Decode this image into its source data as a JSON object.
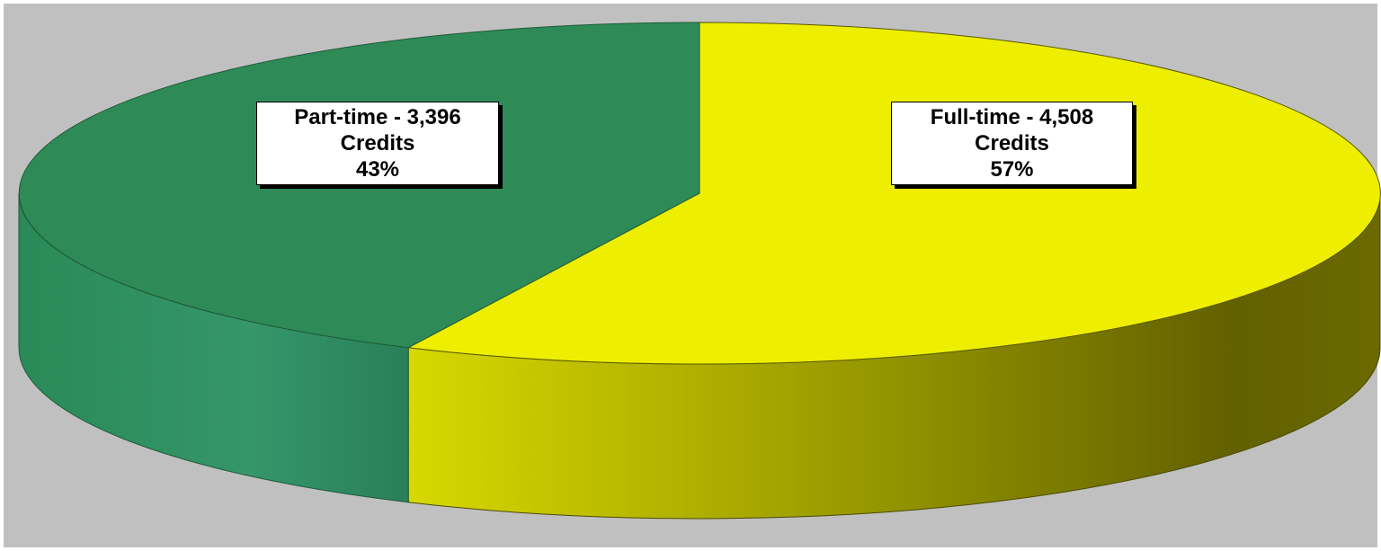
{
  "chart_data": {
    "type": "pie",
    "style": "3d",
    "categories": [
      "Part-time",
      "Full-time"
    ],
    "values": [
      3396,
      4508
    ],
    "percents": [
      43,
      57
    ],
    "colors": [
      "#2e8b57",
      "#eeee00"
    ],
    "legend": "none",
    "labels": [
      {
        "line1": "Part-time - 3,396",
        "line2": "Credits",
        "line3": "43%"
      },
      {
        "line1": "Full-time - 4,508",
        "line2": "Credits",
        "line3": "57%"
      }
    ]
  },
  "colors": {
    "background": "#c0c0c0",
    "part_time": "#2e8b57",
    "full_time": "#eeee00"
  }
}
